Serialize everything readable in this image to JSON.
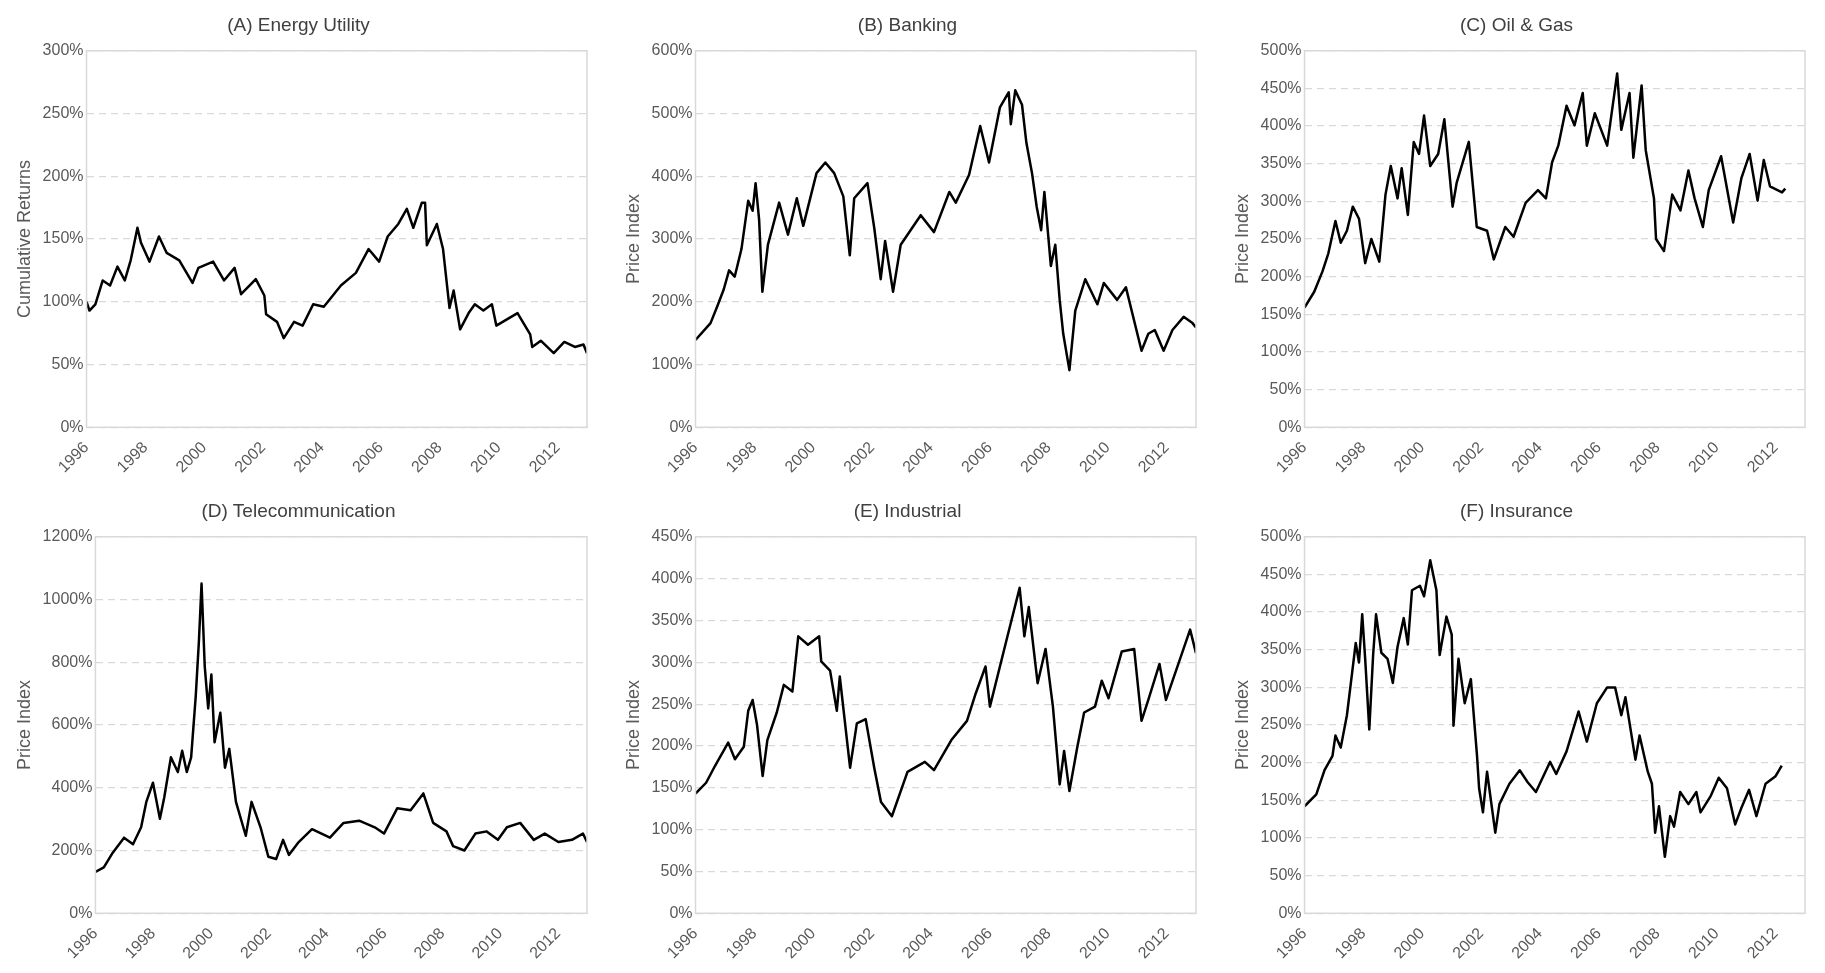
{
  "chart_data": [
    {
      "type": "line",
      "title": "(A) Energy Utility",
      "ylabel": "Cumulative Returns",
      "xlim": [
        1996,
        2013
      ],
      "xticks": [
        1996,
        1998,
        2000,
        2002,
        2004,
        2006,
        2008,
        2010,
        2012
      ],
      "ylim": [
        0,
        300
      ],
      "yticks": [
        {
          "value": 0,
          "label": "0%"
        },
        {
          "value": 50,
          "label": "50%"
        },
        {
          "value": 100,
          "label": "100%"
        },
        {
          "value": 150,
          "label": "150%"
        },
        {
          "value": 200,
          "label": "200%"
        },
        {
          "value": 250,
          "label": "250%"
        },
        {
          "value": 300,
          "label": "300%"
        }
      ],
      "grid": "y",
      "marker": "none",
      "x": [
        1996,
        1996.1,
        1996.3,
        1996.55,
        1996.8,
        1997.05,
        1997.3,
        1997.5,
        1997.73,
        1997.85,
        1998.14,
        1998.46,
        1998.72,
        1999.15,
        1999.6,
        1999.8,
        2000.3,
        2000.67,
        2001.03,
        2001.25,
        2001.75,
        2002.04,
        2002.1,
        2002.47,
        2002.7,
        2003.05,
        2003.34,
        2003.7,
        2004.06,
        2004.64,
        2005.15,
        2005.58,
        2005.94,
        2006.23,
        2006.59,
        2006.88,
        2007.1,
        2007.39,
        2007.5,
        2007.56,
        2007.9,
        2008.11,
        2008.33,
        2008.47,
        2008.69,
        2008.98,
        2009.19,
        2009.48,
        2009.77,
        2009.92,
        2010.28,
        2010.64,
        2011.07,
        2011.14,
        2011.43,
        2011.87,
        2012.23,
        2012.59,
        2012.88,
        2013
      ],
      "series": [
        {
          "color": "#000000",
          "values": [
            100,
            93,
            98,
            117,
            113,
            128,
            117,
            133,
            159,
            147,
            132,
            152,
            139,
            133,
            115,
            127,
            132,
            117,
            127,
            106,
            118,
            105,
            90,
            84,
            71,
            84,
            81,
            98,
            96,
            113,
            123,
            142,
            132,
            152,
            162,
            174,
            159,
            179,
            179,
            145,
            162,
            142,
            95,
            109,
            78,
            91,
            98,
            93,
            98,
            81,
            86,
            91,
            74,
            64,
            69,
            59,
            68,
            64,
            66,
            59
          ]
        }
      ]
    },
    {
      "type": "line",
      "title": "(B) Banking",
      "ylabel": "Price Index",
      "xlim": [
        1996,
        2013
      ],
      "xticks": [
        1996,
        1998,
        2000,
        2002,
        2004,
        2006,
        2008,
        2010,
        2012
      ],
      "ylim": [
        0,
        600
      ],
      "yticks": [
        {
          "value": 0,
          "label": "0%"
        },
        {
          "value": 100,
          "label": "100%"
        },
        {
          "value": 200,
          "label": "200%"
        },
        {
          "value": 300,
          "label": "300%"
        },
        {
          "value": 400,
          "label": "400%"
        },
        {
          "value": 500,
          "label": "500%"
        },
        {
          "value": 600,
          "label": "600%"
        }
      ],
      "grid": "y",
      "marker": "none",
      "x": [
        1996,
        1996.51,
        1996.74,
        1996.96,
        1997.14,
        1997.33,
        1997.56,
        1997.79,
        1997.94,
        1998.04,
        1998.16,
        1998.27,
        1998.46,
        1998.84,
        1999.14,
        1999.44,
        1999.66,
        2000.11,
        2000.41,
        2000.71,
        2001.02,
        2001.24,
        2001.39,
        2001.84,
        2002.07,
        2002.29,
        2002.44,
        2002.71,
        2002.97,
        2003.65,
        2004.1,
        2004.62,
        2004.84,
        2005.29,
        2005.67,
        2005.97,
        2006.34,
        2006.64,
        2006.71,
        2006.86,
        2007.09,
        2007.24,
        2007.43,
        2007.59,
        2007.74,
        2007.85,
        2008.07,
        2008.22,
        2008.37,
        2008.49,
        2008.7,
        2008.9,
        2009.24,
        2009.65,
        2009.87,
        2010.32,
        2010.62,
        2011.15,
        2011.38,
        2011.6,
        2011.9,
        2012.2,
        2012.58,
        2012.88,
        2013
      ],
      "series": [
        {
          "color": "#000000",
          "values": [
            139,
            166,
            193,
            220,
            250,
            240,
            284,
            361,
            345,
            389,
            331,
            216,
            291,
            358,
            307,
            365,
            321,
            405,
            422,
            405,
            368,
            274,
            365,
            389,
            318,
            236,
            297,
            216,
            291,
            338,
            311,
            375,
            358,
            402,
            480,
            422,
            510,
            534,
            483,
            537,
            514,
            453,
            405,
            351,
            314,
            375,
            257,
            291,
            203,
            149,
            91,
            186,
            236,
            196,
            230,
            203,
            223,
            122,
            149,
            155,
            122,
            155,
            176,
            166,
            159
          ]
        }
      ]
    },
    {
      "type": "line",
      "title": "(C) Oil & Gas",
      "ylabel": "Price Index",
      "xlim": [
        1996,
        2013
      ],
      "xticks": [
        1996,
        1998,
        2000,
        2002,
        2004,
        2006,
        2008,
        2010,
        2012
      ],
      "ylim": [
        0,
        500
      ],
      "yticks": [
        {
          "value": 0,
          "label": "0%"
        },
        {
          "value": 50,
          "label": "50%"
        },
        {
          "value": 100,
          "label": "100%"
        },
        {
          "value": 150,
          "label": "150%"
        },
        {
          "value": 200,
          "label": "200%"
        },
        {
          "value": 250,
          "label": "250%"
        },
        {
          "value": 300,
          "label": "300%"
        },
        {
          "value": 350,
          "label": "350%"
        },
        {
          "value": 400,
          "label": "400%"
        },
        {
          "value": 450,
          "label": "450%"
        },
        {
          "value": 500,
          "label": "500%"
        }
      ],
      "grid": "y",
      "marker": "none",
      "x": [
        1996,
        1996.33,
        1996.61,
        1996.81,
        1997.05,
        1997.23,
        1997.44,
        1997.64,
        1997.85,
        1998.06,
        1998.27,
        1998.54,
        1998.75,
        1998.93,
        1999.16,
        1999.3,
        1999.51,
        1999.71,
        1999.89,
        2000.06,
        2000.27,
        2000.54,
        2000.75,
        2001.03,
        2001.17,
        2001.58,
        2001.85,
        2002.2,
        2002.43,
        2002.82,
        2003.1,
        2003.51,
        2003.93,
        2004.2,
        2004.41,
        2004.62,
        2004.9,
        2005.17,
        2005.45,
        2005.59,
        2005.86,
        2006.28,
        2006.62,
        2006.76,
        2007.04,
        2007.17,
        2007.45,
        2007.59,
        2007.87,
        2007.94,
        2008.21,
        2008.49,
        2008.77,
        2009.04,
        2009.25,
        2009.53,
        2009.73,
        2010.15,
        2010.56,
        2010.84,
        2011.12,
        2011.39,
        2011.6,
        2011.81,
        2012.22,
        2012.33
      ],
      "series": [
        {
          "color": "#000000",
          "values": [
            159,
            180,
            207,
            231,
            274,
            245,
            261,
            293,
            277,
            218,
            250,
            220,
            309,
            347,
            304,
            344,
            282,
            379,
            363,
            414,
            347,
            363,
            409,
            293,
            325,
            379,
            266,
            261,
            223,
            266,
            253,
            298,
            315,
            304,
            352,
            374,
            427,
            401,
            444,
            374,
            417,
            374,
            470,
            395,
            444,
            358,
            454,
            368,
            304,
            250,
            234,
            309,
            288,
            341,
            304,
            266,
            315,
            360,
            272,
            331,
            363,
            301,
            355,
            320,
            312,
            317
          ]
        }
      ]
    },
    {
      "type": "line",
      "title": "(D) Telecommunication",
      "ylabel": "Price Index",
      "xlim": [
        1996,
        2013
      ],
      "xticks": [
        1996,
        1998,
        2000,
        2002,
        2004,
        2006,
        2008,
        2010,
        2012
      ],
      "ylim": [
        0,
        1200
      ],
      "yticks": [
        {
          "value": 0,
          "label": "0%"
        },
        {
          "value": 200,
          "label": "200%"
        },
        {
          "value": 400,
          "label": "400%"
        },
        {
          "value": 600,
          "label": "600%"
        },
        {
          "value": 800,
          "label": "800%"
        },
        {
          "value": 1000,
          "label": "1000%"
        },
        {
          "value": 1200,
          "label": "1200%"
        }
      ],
      "grid": "y",
      "marker": "none",
      "x": [
        1996,
        1996.29,
        1996.6,
        1996.99,
        1997.3,
        1997.58,
        1997.76,
        1997.99,
        1998.23,
        1998.38,
        1998.61,
        1998.85,
        1999,
        1999.16,
        1999.31,
        1999.47,
        1999.58,
        1999.67,
        1999.78,
        1999.9,
        2000.01,
        2000.12,
        2000.32,
        2000.48,
        2000.63,
        2000.86,
        2001.2,
        2001.4,
        2001.71,
        2001.98,
        2002.25,
        2002.49,
        2002.69,
        2003.03,
        2003.49,
        2004.11,
        2004.58,
        2005.12,
        2005.66,
        2005.98,
        2006.44,
        2006.9,
        2007.34,
        2007.68,
        2008.14,
        2008.37,
        2008.76,
        2009.14,
        2009.53,
        2009.92,
        2010.23,
        2010.69,
        2011.16,
        2011.54,
        2012.01,
        2012.48,
        2012.86,
        2013
      ],
      "series": [
        {
          "color": "#000000",
          "values": [
            132,
            146,
            193,
            241,
            220,
            274,
            355,
            416,
            301,
            369,
            497,
            450,
            518,
            450,
            497,
            693,
            869,
            1051,
            788,
            653,
            761,
            545,
            639,
            464,
            524,
            355,
            247,
            355,
            274,
            180,
            173,
            234,
            186,
            227,
            268,
            241,
            288,
            295,
            274,
            254,
            335,
            328,
            382,
            288,
            261,
            214,
            200,
            254,
            261,
            234,
            274,
            288,
            234,
            254,
            227,
            234,
            254,
            227
          ]
        }
      ]
    },
    {
      "type": "line",
      "title": "(E) Industrial",
      "ylabel": "Price Index",
      "xlim": [
        1996,
        2013
      ],
      "xticks": [
        1996,
        1998,
        2000,
        2002,
        2004,
        2006,
        2008,
        2010,
        2012
      ],
      "ylim": [
        0,
        450
      ],
      "yticks": [
        {
          "value": 0,
          "label": "0%"
        },
        {
          "value": 50,
          "label": "50%"
        },
        {
          "value": 100,
          "label": "100%"
        },
        {
          "value": 150,
          "label": "150%"
        },
        {
          "value": 200,
          "label": "200%"
        },
        {
          "value": 250,
          "label": "250%"
        },
        {
          "value": 300,
          "label": "300%"
        },
        {
          "value": 350,
          "label": "350%"
        },
        {
          "value": 400,
          "label": "400%"
        },
        {
          "value": 450,
          "label": "450%"
        }
      ],
      "grid": "y",
      "marker": "none",
      "x": [
        1996,
        1996.36,
        1996.66,
        1997.11,
        1997.34,
        1997.64,
        1997.79,
        1997.94,
        1998.09,
        1998.28,
        1998.44,
        1998.76,
        1999,
        1999.29,
        1999.49,
        1999.82,
        2000.2,
        2000.27,
        2000.57,
        2000.8,
        2000.9,
        2001.25,
        2001.48,
        2001.78,
        2002.07,
        2002.3,
        2002.67,
        2003.2,
        2003.79,
        2004.1,
        2004.69,
        2005.22,
        2005.52,
        2005.85,
        2006,
        2006.56,
        2007.01,
        2007.17,
        2007.32,
        2007.62,
        2007.89,
        2008.14,
        2008.37,
        2008.52,
        2008.7,
        2008.97,
        2009.2,
        2009.57,
        2009.8,
        2010.03,
        2010.48,
        2010.9,
        2011.15,
        2011.38,
        2011.76,
        2011.98,
        2012.43,
        2012.8,
        2013
      ],
      "series": [
        {
          "color": "#000000",
          "values": [
            143,
            156,
            176,
            204,
            184,
            199,
            242,
            255,
            225,
            164,
            207,
            240,
            273,
            265,
            331,
            321,
            331,
            301,
            290,
            242,
            283,
            174,
            227,
            232,
            174,
            133,
            116,
            169,
            181,
            171,
            207,
            230,
            263,
            295,
            247,
            326,
            389,
            331,
            366,
            275,
            316,
            247,
            154,
            194,
            146,
            199,
            240,
            247,
            278,
            257,
            313,
            316,
            230,
            255,
            298,
            255,
            301,
            339,
            311
          ]
        }
      ]
    },
    {
      "type": "line",
      "title": "(F) Insurance",
      "ylabel": "Price Index",
      "xlim": [
        1996,
        2013
      ],
      "xticks": [
        1996,
        1998,
        2000,
        2002,
        2004,
        2006,
        2008,
        2010,
        2012
      ],
      "ylim": [
        0,
        500
      ],
      "yticks": [
        {
          "value": 0,
          "label": "0%"
        },
        {
          "value": 50,
          "label": "50%"
        },
        {
          "value": 100,
          "label": "100%"
        },
        {
          "value": 150,
          "label": "150%"
        },
        {
          "value": 200,
          "label": "200%"
        },
        {
          "value": 250,
          "label": "250%"
        },
        {
          "value": 300,
          "label": "300%"
        },
        {
          "value": 350,
          "label": "350%"
        },
        {
          "value": 400,
          "label": "400%"
        },
        {
          "value": 450,
          "label": "450%"
        },
        {
          "value": 500,
          "label": "500%"
        }
      ],
      "grid": "y",
      "marker": "none",
      "x": [
        1996,
        1996.4,
        1996.68,
        1996.95,
        1997.05,
        1997.23,
        1997.44,
        1997.64,
        1997.74,
        1997.85,
        1997.96,
        1998.06,
        1998.2,
        1998.33,
        1998.43,
        1998.61,
        1998.82,
        1999,
        1999.16,
        1999.37,
        1999.51,
        1999.65,
        1999.92,
        2000.06,
        2000.27,
        2000.48,
        2000.59,
        2000.82,
        2001,
        2001.06,
        2001.23,
        2001.44,
        2001.65,
        2001.86,
        2001.93,
        2002.06,
        2002.2,
        2002.48,
        2002.62,
        2002.96,
        2003.31,
        2003.58,
        2003.86,
        2004.34,
        2004.55,
        2004.9,
        2005.31,
        2005.59,
        2005.93,
        2006.28,
        2006.55,
        2006.76,
        2006.9,
        2007.24,
        2007.38,
        2007.66,
        2007.8,
        2007.91,
        2008.04,
        2008.24,
        2008.42,
        2008.55,
        2008.76,
        2009.04,
        2009.31,
        2009.45,
        2009.8,
        2010.07,
        2010.35,
        2010.63,
        2010.83,
        2011.1,
        2011.35,
        2011.66,
        2012,
        2012.21
      ],
      "series": [
        {
          "color": "#000000",
          "values": [
            142,
            158,
            190,
            209,
            236,
            220,
            263,
            327,
            359,
            333,
            397,
            338,
            244,
            343,
            397,
            346,
            338,
            306,
            354,
            392,
            357,
            429,
            435,
            421,
            469,
            429,
            343,
            394,
            370,
            249,
            338,
            279,
            311,
            209,
            166,
            134,
            188,
            107,
            145,
            172,
            190,
            174,
            161,
            201,
            185,
            215,
            268,
            228,
            279,
            300,
            300,
            263,
            287,
            204,
            236,
            188,
            172,
            107,
            142,
            75,
            129,
            115,
            161,
            145,
            161,
            134,
            156,
            180,
            166,
            118,
            139,
            164,
            129,
            172,
            182,
            196
          ]
        }
      ]
    }
  ]
}
